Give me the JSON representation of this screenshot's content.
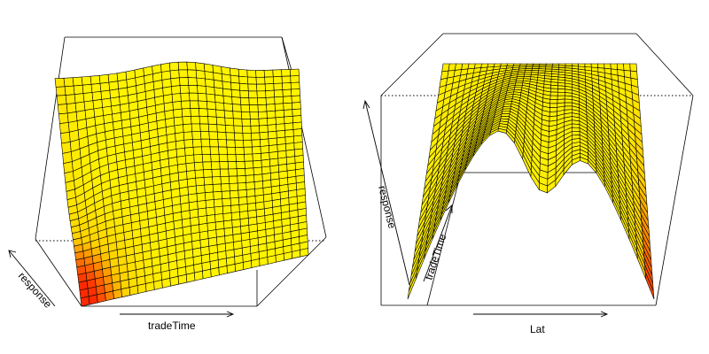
{
  "chart_data": [
    {
      "type": "surface",
      "xlabel": "tradeTime",
      "zlabel": "response",
      "colors": {
        "low": "#ffff00",
        "high": "#ff2a00",
        "mid": "#ffd000",
        "grid": "#000000"
      }
    },
    {
      "type": "surface",
      "xlabel": "Lat",
      "ylabel": "tradeTime",
      "zlabel": "response",
      "colors": {
        "low": "#ffff00",
        "high": "#ff2a00",
        "mid": "#ffd000",
        "grid": "#000000"
      }
    }
  ]
}
